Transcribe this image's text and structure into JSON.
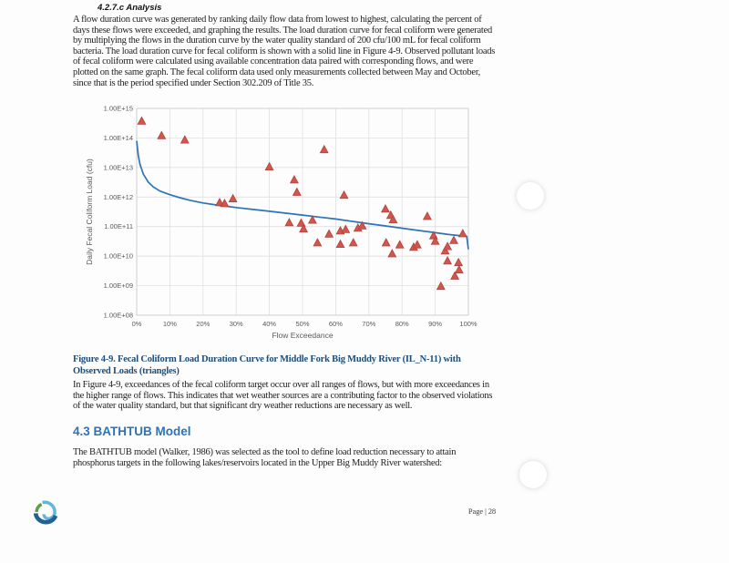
{
  "document": {
    "heading_analysis": "4.2.7.c Analysis",
    "para_flow_duration": "A flow duration curve was generated by ranking daily flow data from lowest to highest, calculating the percent of days these flows were exceeded, and graphing the results.  The load duration curve for fecal coliform were generated by multiplying the flows in the duration curve by the water quality standard of 200 cfu/100 mL for fecal coliform bacteria.  The load duration curve for fecal coliform is shown with a solid line in Figure 4-9.  Observed pollutant loads of fecal coliform were calculated using available concentration data paired with corresponding flows, and were plotted on the same graph.  The fecal coliform data used only measurements collected between May and October, since that is the period specified under Section 302.209 of Title 35.",
    "figure_caption": {
      "line1": "Figure 4-9.  Fecal Coliform Load Duration Curve for Middle Fork Big Muddy River (IL_N-11) with",
      "line2": "Observed Loads (triangles)"
    },
    "para_exceedances": "In Figure 4-9, exceedances of the fecal coliform target occur over all ranges of flows, but with more exceedances in the higher range of flows.  This indicates that wet weather sources are a contributing factor to the observed violations of the water quality standard, but that significant dry weather reductions are necessary as well.",
    "heading_bathtub": "4.3 BATHTUB Model",
    "para_bathtub": "The BATHTUB model (Walker, 1986) was selected as the tool to define load reduction necessary to attain phosphorus targets in the following lakes/reservoirs located in the Upper Big Muddy River watershed:",
    "footer": {
      "page_label": "Page | 28"
    },
    "logo_icon": "water-swirl-logo"
  },
  "chart_data": {
    "type": "line+scatter",
    "title": "",
    "xlabel": "Flow Exceedance",
    "ylabel": "Daily Fecal Coliform Load (cfu)",
    "x_range": [
      0,
      100
    ],
    "y_log_range": [
      8,
      15
    ],
    "grid": true,
    "legend": "none",
    "x_ticks": [
      {
        "label": "0%",
        "value": 0
      },
      {
        "label": "10%",
        "value": 10
      },
      {
        "label": "20%",
        "value": 20
      },
      {
        "label": "30%",
        "value": 30
      },
      {
        "label": "40%",
        "value": 40
      },
      {
        "label": "50%",
        "value": 50
      },
      {
        "label": "60%",
        "value": 60
      },
      {
        "label": "70%",
        "value": 70
      },
      {
        "label": "80%",
        "value": 80
      },
      {
        "label": "90%",
        "value": 90
      },
      {
        "label": "100%",
        "value": 100
      }
    ],
    "y_ticks": [
      {
        "label": "1.00E+15",
        "value": 1000000000000000.0
      },
      {
        "label": "1.00E+14",
        "value": 100000000000000.0
      },
      {
        "label": "1.00E+13",
        "value": 10000000000000.0
      },
      {
        "label": "1.00E+12",
        "value": 1000000000000.0
      },
      {
        "label": "1.00E+11",
        "value": 100000000000.0
      },
      {
        "label": "1.00E+10",
        "value": 10000000000.0
      },
      {
        "label": "1.00E+09",
        "value": 1000000000.0
      },
      {
        "label": "1.00E+08",
        "value": 100000000.0
      }
    ],
    "colors": {
      "curve": "#2e74b5",
      "marker_fill": "#d0574e",
      "marker_edge": "#b2423b",
      "grid": "#dcdcdc",
      "plot_border": "#c9c9c9",
      "axis_text": "#595959"
    },
    "series": [
      {
        "name": "Fecal coliform load duration curve",
        "type": "line",
        "points": [
          [
            0,
            80000000000000.0
          ],
          [
            0.5,
            25000000000000.0
          ],
          [
            1,
            13000000000000.0
          ],
          [
            2,
            6000000000000.0
          ],
          [
            3.5,
            3200000000000.0
          ],
          [
            5,
            2200000000000.0
          ],
          [
            7,
            1600000000000.0
          ],
          [
            10,
            1200000000000.0
          ],
          [
            13,
            950000000000.0
          ],
          [
            16,
            780000000000.0
          ],
          [
            20,
            630000000000.0
          ],
          [
            25,
            520000000000.0
          ],
          [
            30,
            440000000000.0
          ],
          [
            35,
            380000000000.0
          ],
          [
            40,
            330000000000.0
          ],
          [
            45,
            285000000000.0
          ],
          [
            50,
            245000000000.0
          ],
          [
            55,
            210000000000.0
          ],
          [
            60,
            180000000000.0
          ],
          [
            65,
            150000000000.0
          ],
          [
            70,
            125000000000.0
          ],
          [
            75,
            105000000000.0
          ],
          [
            80,
            88000000000.0
          ],
          [
            85,
            74000000000.0
          ],
          [
            90,
            62000000000.0
          ],
          [
            94,
            54000000000.0
          ],
          [
            97,
            50000000000.0
          ],
          [
            99,
            48000000000.0
          ],
          [
            99.5,
            47000000000.0
          ],
          [
            100,
            17000000000.0
          ]
        ]
      },
      {
        "name": "Observed loads",
        "type": "scatter_triangle",
        "points": [
          [
            1.5,
            370000000000000.0
          ],
          [
            7.5,
            120000000000000.0
          ],
          [
            14.5,
            85000000000000.0
          ],
          [
            25,
            650000000000.0
          ],
          [
            26.5,
            600000000000.0
          ],
          [
            29,
            870000000000.0
          ],
          [
            40,
            10500000000000.0
          ],
          [
            46,
            135000000000.0
          ],
          [
            47.5,
            3800000000000.0
          ],
          [
            48.3,
            1450000000000.0
          ],
          [
            49.6,
            130000000000.0
          ],
          [
            50.3,
            83000000000.0
          ],
          [
            53,
            165000000000.0
          ],
          [
            54.5,
            28000000000.0
          ],
          [
            56.5,
            40000000000000.0
          ],
          [
            58,
            56000000000.0
          ],
          [
            61.4,
            71000000000.0
          ],
          [
            61.4,
            25000000000.0
          ],
          [
            62.5,
            1150000000000.0
          ],
          [
            63,
            79000000000.0
          ],
          [
            65.3,
            28000000000.0
          ],
          [
            66.7,
            89000000000.0
          ],
          [
            68,
            105000000000.0
          ],
          [
            75,
            390000000000.0
          ],
          [
            75.2,
            28000000000.0
          ],
          [
            76.6,
            240000000000.0
          ],
          [
            77,
            12000000000.0
          ],
          [
            77.3,
            170000000000.0
          ],
          [
            79.3,
            24000000000.0
          ],
          [
            83.5,
            20000000000.0
          ],
          [
            84.6,
            24000000000.0
          ],
          [
            87.6,
            220000000000.0
          ],
          [
            89.5,
            49000000000.0
          ],
          [
            90,
            32000000000.0
          ],
          [
            91.7,
            950000000.0
          ],
          [
            93,
            15000000000.0
          ],
          [
            93.7,
            21000000000.0
          ],
          [
            93.7,
            6900000000.0
          ],
          [
            95.6,
            34000000000.0
          ],
          [
            95.9,
            2100000000.0
          ],
          [
            97,
            6000000000.0
          ],
          [
            97.2,
            3400000000.0
          ],
          [
            98.3,
            57000000000.0
          ]
        ]
      }
    ]
  }
}
